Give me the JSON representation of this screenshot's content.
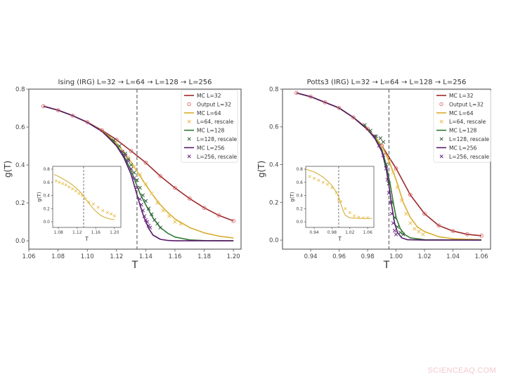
{
  "watermark": "SCIENCEAQ.COM",
  "chart_data": [
    {
      "type": "line",
      "title": "Ising (IRG)    L=32 → L=64 → L=128 → L=256",
      "xlabel": "T",
      "ylabel": "g(T)",
      "xlim": [
        1.06,
        1.2052
      ],
      "ylim": [
        -0.044,
        0.8
      ],
      "xticks": [
        1.06,
        1.08,
        1.1,
        1.12,
        1.14,
        1.16,
        1.18,
        1.2
      ],
      "xtick_labels": [
        "1.06",
        "1.08",
        "1.10",
        "1.12",
        "1.14",
        "1.16",
        "1.18",
        "1.20"
      ],
      "yticks": [
        0.0,
        0.2,
        0.4,
        0.6,
        0.8
      ],
      "ytick_labels": [
        "0.0",
        "0.2",
        "0.4",
        "0.6",
        "0.8"
      ],
      "vline": 1.134,
      "legend_position": "top-right",
      "series": [
        {
          "name": "MC L=32",
          "kind": "line",
          "color": "#9e2a2b",
          "x": [
            1.07,
            1.08,
            1.09,
            1.1,
            1.11,
            1.12,
            1.13,
            1.14,
            1.15,
            1.16,
            1.17,
            1.18,
            1.19,
            1.2
          ],
          "y": [
            0.71,
            0.689,
            0.66,
            0.626,
            0.583,
            0.533,
            0.474,
            0.412,
            0.341,
            0.279,
            0.223,
            0.174,
            0.134,
            0.105
          ]
        },
        {
          "name": "Output L=32",
          "kind": "circle",
          "color": "#d86a6a",
          "x": [
            1.07,
            1.08,
            1.09,
            1.1,
            1.11,
            1.12,
            1.13,
            1.14,
            1.15,
            1.16,
            1.17,
            1.18,
            1.19,
            1.2
          ],
          "y": [
            0.71,
            0.689,
            0.66,
            0.626,
            0.583,
            0.533,
            0.474,
            0.412,
            0.341,
            0.279,
            0.223,
            0.174,
            0.134,
            0.105
          ]
        },
        {
          "name": "MC L=64",
          "kind": "line",
          "color": "#d9ad2f",
          "x": [
            1.07,
            1.08,
            1.09,
            1.1,
            1.11,
            1.115,
            1.12,
            1.125,
            1.13,
            1.135,
            1.14,
            1.145,
            1.15,
            1.155,
            1.16,
            1.17,
            1.18,
            1.19,
            1.2
          ],
          "y": [
            0.71,
            0.689,
            0.66,
            0.625,
            0.58,
            0.55,
            0.515,
            0.47,
            0.415,
            0.355,
            0.295,
            0.24,
            0.19,
            0.15,
            0.115,
            0.07,
            0.042,
            0.025,
            0.015
          ]
        },
        {
          "name": "L=64, rescale",
          "kind": "x",
          "color": "#e6c155",
          "x": [
            1.124,
            1.128,
            1.132,
            1.136,
            1.14,
            1.144,
            1.148,
            1.152,
            1.156,
            1.16,
            1.164
          ],
          "y": [
            0.47,
            0.44,
            0.39,
            0.35,
            0.3,
            0.25,
            0.2,
            0.16,
            0.13,
            0.1,
            0.09
          ]
        },
        {
          "name": "MC L=128",
          "kind": "line",
          "color": "#2f7a34",
          "x": [
            1.07,
            1.08,
            1.09,
            1.1,
            1.11,
            1.115,
            1.12,
            1.125,
            1.13,
            1.133,
            1.136,
            1.14,
            1.145,
            1.15,
            1.155,
            1.16,
            1.17,
            1.18,
            1.2
          ],
          "y": [
            0.71,
            0.689,
            0.66,
            0.625,
            0.578,
            0.545,
            0.505,
            0.45,
            0.37,
            0.31,
            0.25,
            0.19,
            0.12,
            0.07,
            0.04,
            0.02,
            0.005,
            0.001,
            0
          ]
        },
        {
          "name": "L=128, rescale",
          "kind": "x",
          "color": "#2b5d33",
          "x": [
            1.118,
            1.122,
            1.126,
            1.128,
            1.13,
            1.132,
            1.134,
            1.136,
            1.138,
            1.14,
            1.142,
            1.144,
            1.146,
            1.148,
            1.15
          ],
          "y": [
            0.53,
            0.5,
            0.46,
            0.43,
            0.4,
            0.36,
            0.32,
            0.28,
            0.24,
            0.21,
            0.17,
            0.14,
            0.11,
            0.09,
            0.07
          ]
        },
        {
          "name": "MC L=256",
          "kind": "line",
          "color": "#5a1a6a",
          "x": [
            1.07,
            1.08,
            1.09,
            1.1,
            1.11,
            1.115,
            1.12,
            1.125,
            1.13,
            1.133,
            1.136,
            1.139,
            1.142,
            1.145,
            1.15,
            1.155,
            1.16,
            1.2
          ],
          "y": [
            0.71,
            0.689,
            0.66,
            0.625,
            0.577,
            0.54,
            0.5,
            0.44,
            0.35,
            0.27,
            0.19,
            0.12,
            0.065,
            0.03,
            0.008,
            0.002,
            0,
            0
          ]
        },
        {
          "name": "L=256, rescale",
          "kind": "x",
          "color": "#6b2a85",
          "x": [
            1.124,
            1.126,
            1.128,
            1.13,
            1.132,
            1.134,
            1.136,
            1.137,
            1.138,
            1.139,
            1.14,
            1.141,
            1.142,
            1.143
          ],
          "y": [
            0.47,
            0.45,
            0.42,
            0.38,
            0.33,
            0.28,
            0.22,
            0.19,
            0.16,
            0.13,
            0.11,
            0.1,
            0.08,
            0.07
          ]
        }
      ],
      "inset": {
        "xlabel": "T",
        "ylabel": "g(T)",
        "xlim": [
          1.0677,
          1.2138
        ],
        "ylim": [
          -0.085,
          0.843
        ],
        "xticks": [
          1.08,
          1.12,
          1.16,
          1.2
        ],
        "xtick_labels": [
          "1.08",
          "1.12",
          "1.16",
          "1.20"
        ],
        "yticks": [
          0.0,
          0.2,
          0.4,
          0.6,
          0.8
        ],
        "ytick_labels": [
          "0.0",
          "0.2",
          "0.4",
          "0.6",
          "0.8"
        ],
        "vline": 1.134,
        "series": [
          {
            "name": "MC L=64",
            "kind": "line",
            "color": "#d9b54a",
            "x": [
              1.07,
              1.08,
              1.09,
              1.1,
              1.11,
              1.12,
              1.13,
              1.135,
              1.14,
              1.15,
              1.16,
              1.17,
              1.18,
              1.19,
              1.2
            ],
            "y": [
              0.72,
              0.69,
              0.65,
              0.61,
              0.56,
              0.5,
              0.43,
              0.38,
              0.33,
              0.24,
              0.16,
              0.1,
              0.065,
              0.045,
              0.03
            ]
          },
          {
            "name": "L=64, rescale",
            "kind": "x",
            "color": "#e6c155",
            "x": [
              1.075,
              1.082,
              1.089,
              1.096,
              1.103,
              1.11,
              1.117,
              1.124,
              1.131,
              1.138,
              1.145,
              1.155,
              1.165,
              1.175,
              1.185,
              1.193,
              1.2
            ],
            "y": [
              0.62,
              0.6,
              0.58,
              0.56,
              0.53,
              0.5,
              0.47,
              0.43,
              0.4,
              0.35,
              0.3,
              0.27,
              0.22,
              0.17,
              0.14,
              0.12,
              0.09
            ]
          }
        ]
      }
    },
    {
      "type": "line",
      "title": "Potts3 (IRG)    L=32 → L=64 → L=128 → L=256",
      "xlabel": "T",
      "ylabel": "g(T)",
      "xlim": [
        0.9202,
        1.0664
      ],
      "ylim": [
        -0.048,
        0.8
      ],
      "xticks": [
        0.94,
        0.96,
        0.98,
        1.0,
        1.02,
        1.04,
        1.06
      ],
      "xtick_labels": [
        "0.94",
        "0.96",
        "0.98",
        "1.00",
        "1.02",
        "1.04",
        "1.06"
      ],
      "yticks": [
        0.0,
        0.2,
        0.4,
        0.6,
        0.8
      ],
      "ytick_labels": [
        "0.0",
        "0.2",
        "0.4",
        "0.6",
        "0.8"
      ],
      "vline": 0.995,
      "legend_position": "top-right",
      "series": [
        {
          "name": "MC L=32",
          "kind": "line",
          "color": "#9e2a2b",
          "x": [
            0.93,
            0.94,
            0.95,
            0.96,
            0.97,
            0.98,
            0.99,
            1.0,
            1.01,
            1.02,
            1.03,
            1.04,
            1.05,
            1.06
          ],
          "y": [
            0.78,
            0.76,
            0.73,
            0.7,
            0.65,
            0.59,
            0.5,
            0.38,
            0.24,
            0.14,
            0.077,
            0.048,
            0.031,
            0.023
          ]
        },
        {
          "name": "Output L=32",
          "kind": "circle",
          "color": "#d86a6a",
          "x": [
            0.93,
            0.94,
            0.95,
            0.96,
            0.97,
            0.98,
            0.99,
            1.0,
            1.01,
            1.02,
            1.03,
            1.04,
            1.05,
            1.06
          ],
          "y": [
            0.78,
            0.76,
            0.73,
            0.7,
            0.65,
            0.59,
            0.5,
            0.38,
            0.24,
            0.14,
            0.077,
            0.048,
            0.031,
            0.023
          ]
        },
        {
          "name": "MC L=64",
          "kind": "line",
          "color": "#d9ad2f",
          "x": [
            0.93,
            0.94,
            0.95,
            0.96,
            0.97,
            0.98,
            0.985,
            0.99,
            0.995,
            1.0,
            1.005,
            1.01,
            1.015,
            1.02,
            1.03,
            1.04,
            1.06
          ],
          "y": [
            0.78,
            0.76,
            0.73,
            0.7,
            0.65,
            0.585,
            0.55,
            0.5,
            0.42,
            0.32,
            0.2,
            0.12,
            0.07,
            0.045,
            0.018,
            0.007,
            0.002
          ]
        },
        {
          "name": "L=64, rescale",
          "kind": "x",
          "color": "#e6c155",
          "x": [
            0.995,
            0.998,
            1.001,
            1.004,
            1.007,
            1.01,
            1.013,
            1.016,
            1.019
          ],
          "y": [
            0.42,
            0.36,
            0.28,
            0.21,
            0.14,
            0.09,
            0.06,
            0.045,
            0.03
          ]
        },
        {
          "name": "MC L=128",
          "kind": "line",
          "color": "#2f7a34",
          "x": [
            0.93,
            0.94,
            0.95,
            0.96,
            0.97,
            0.98,
            0.985,
            0.99,
            0.993,
            0.996,
            0.998,
            1.0,
            1.003,
            1.006,
            1.01,
            1.02,
            1.06
          ],
          "y": [
            0.78,
            0.76,
            0.73,
            0.7,
            0.65,
            0.585,
            0.545,
            0.48,
            0.4,
            0.29,
            0.2,
            0.12,
            0.06,
            0.03,
            0.012,
            0.002,
            0
          ]
        },
        {
          "name": "L=128, rescale",
          "kind": "x",
          "color": "#2b5d33",
          "x": [
            0.978,
            0.982,
            0.986,
            0.989,
            0.991,
            0.993,
            0.995,
            0.997,
            0.999,
            1.001,
            1.003,
            1.005
          ],
          "y": [
            0.61,
            0.58,
            0.55,
            0.54,
            0.52,
            0.4,
            0.3,
            0.2,
            0.12,
            0.07,
            0.04,
            0.03
          ]
        },
        {
          "name": "MC L=256",
          "kind": "line",
          "color": "#5a1a6a",
          "x": [
            0.93,
            0.94,
            0.95,
            0.96,
            0.97,
            0.98,
            0.985,
            0.99,
            0.993,
            0.995,
            0.997,
            0.999,
            1.001,
            1.004,
            1.008,
            1.02,
            1.06
          ],
          "y": [
            0.78,
            0.76,
            0.73,
            0.7,
            0.65,
            0.585,
            0.54,
            0.47,
            0.38,
            0.29,
            0.18,
            0.09,
            0.04,
            0.012,
            0.002,
            0,
            0
          ]
        },
        {
          "name": "L=256, rescale",
          "kind": "x",
          "color": "#6b2a85",
          "x": [
            0.985,
            0.988,
            0.991,
            0.993,
            0.994,
            0.995,
            0.996,
            0.997,
            0.998,
            0.999,
            1.0
          ],
          "y": [
            0.55,
            0.5,
            0.45,
            0.38,
            0.32,
            0.25,
            0.2,
            0.14,
            0.09,
            0.05,
            0.03
          ]
        }
      ],
      "inset": {
        "xlabel": "T",
        "ylabel": "g(T)",
        "xlim": [
          0.921,
          1.074
        ],
        "ylim": [
          -0.085,
          0.843
        ],
        "xticks": [
          0.94,
          0.98,
          1.02,
          1.06
        ],
        "xtick_labels": [
          "0.94",
          "0.98",
          "1.02",
          "1.06"
        ],
        "yticks": [
          0.0,
          0.2,
          0.4,
          0.6,
          0.8
        ],
        "ytick_labels": [
          "0.0",
          "0.2",
          "0.4",
          "0.6",
          "0.8"
        ],
        "vline": 0.995,
        "series": [
          {
            "name": "MC L=64",
            "kind": "line",
            "color": "#d9b54a",
            "x": [
              0.921,
              0.93,
              0.94,
              0.95,
              0.96,
              0.97,
              0.98,
              0.99,
              0.995,
              1.0,
              1.005,
              1.01,
              1.02,
              1.03,
              1.05,
              1.07
            ],
            "y": [
              0.8,
              0.78,
              0.76,
              0.72,
              0.68,
              0.62,
              0.55,
              0.45,
              0.38,
              0.27,
              0.17,
              0.1,
              0.06,
              0.055,
              0.05,
              0.05
            ]
          },
          {
            "name": "L=64, rescale",
            "kind": "x",
            "color": "#e6c155",
            "x": [
              0.93,
              0.94,
              0.95,
              0.96,
              0.97,
              0.98,
              0.99,
              0.995,
              1.0,
              1.01,
              1.02,
              1.03,
              1.04,
              1.05,
              1.06
            ],
            "y": [
              0.69,
              0.66,
              0.63,
              0.6,
              0.57,
              0.52,
              0.44,
              0.33,
              0.31,
              0.2,
              0.14,
              0.09,
              0.07,
              0.06,
              0.06
            ]
          }
        ]
      }
    }
  ]
}
